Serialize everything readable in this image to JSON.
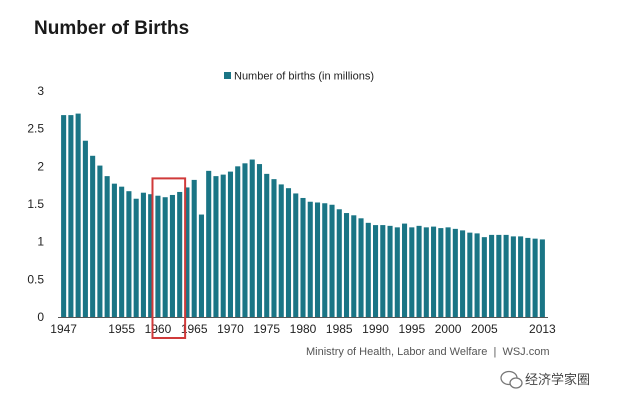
{
  "chart_data": {
    "type": "bar",
    "title": "Number of Births",
    "legend": {
      "label": "Number of births (in millions)",
      "placement": "top-center"
    },
    "xlabel": "",
    "ylabel": "",
    "ylim": [
      0,
      3
    ],
    "y_ticks": [
      "0",
      "0.5",
      "1",
      "1.5",
      "2",
      "2.5",
      "3"
    ],
    "x_tick_labels": [
      "1947",
      "1955",
      "1960",
      "1965",
      "1970",
      "1975",
      "1980",
      "1985",
      "1990",
      "1995",
      "2000",
      "2005",
      "2013"
    ],
    "grid": false,
    "bar_color": "#1a7585",
    "highlight": {
      "from": 1960,
      "to": 1963,
      "color": "#d03a3a"
    },
    "x": [
      1947,
      1948,
      1949,
      1950,
      1951,
      1952,
      1953,
      1954,
      1955,
      1956,
      1957,
      1958,
      1959,
      1960,
      1961,
      1962,
      1963,
      1964,
      1965,
      1966,
      1967,
      1968,
      1969,
      1970,
      1971,
      1972,
      1973,
      1974,
      1975,
      1976,
      1977,
      1978,
      1979,
      1980,
      1981,
      1982,
      1983,
      1984,
      1985,
      1986,
      1987,
      1988,
      1989,
      1990,
      1991,
      1992,
      1993,
      1994,
      1995,
      1996,
      1997,
      1998,
      1999,
      2000,
      2001,
      2002,
      2003,
      2004,
      2005,
      2006,
      2007,
      2008,
      2009,
      2010,
      2011,
      2012,
      2013
    ],
    "series": [
      {
        "name": "Number of births (in millions)",
        "values": [
          2.68,
          2.68,
          2.7,
          2.34,
          2.14,
          2.01,
          1.87,
          1.77,
          1.73,
          1.67,
          1.57,
          1.65,
          1.63,
          1.61,
          1.59,
          1.62,
          1.66,
          1.72,
          1.82,
          1.36,
          1.94,
          1.87,
          1.89,
          1.93,
          2.0,
          2.04,
          2.09,
          2.03,
          1.9,
          1.83,
          1.76,
          1.71,
          1.64,
          1.58,
          1.53,
          1.52,
          1.51,
          1.49,
          1.43,
          1.38,
          1.35,
          1.31,
          1.25,
          1.22,
          1.22,
          1.21,
          1.19,
          1.24,
          1.19,
          1.21,
          1.19,
          1.2,
          1.18,
          1.19,
          1.17,
          1.15,
          1.12,
          1.11,
          1.06,
          1.09,
          1.09,
          1.09,
          1.07,
          1.07,
          1.05,
          1.04,
          1.03
        ]
      }
    ]
  },
  "source_note": "Ministry of Health, Labor and Welfare  |  WSJ.com",
  "watermark": "经济学家圈"
}
